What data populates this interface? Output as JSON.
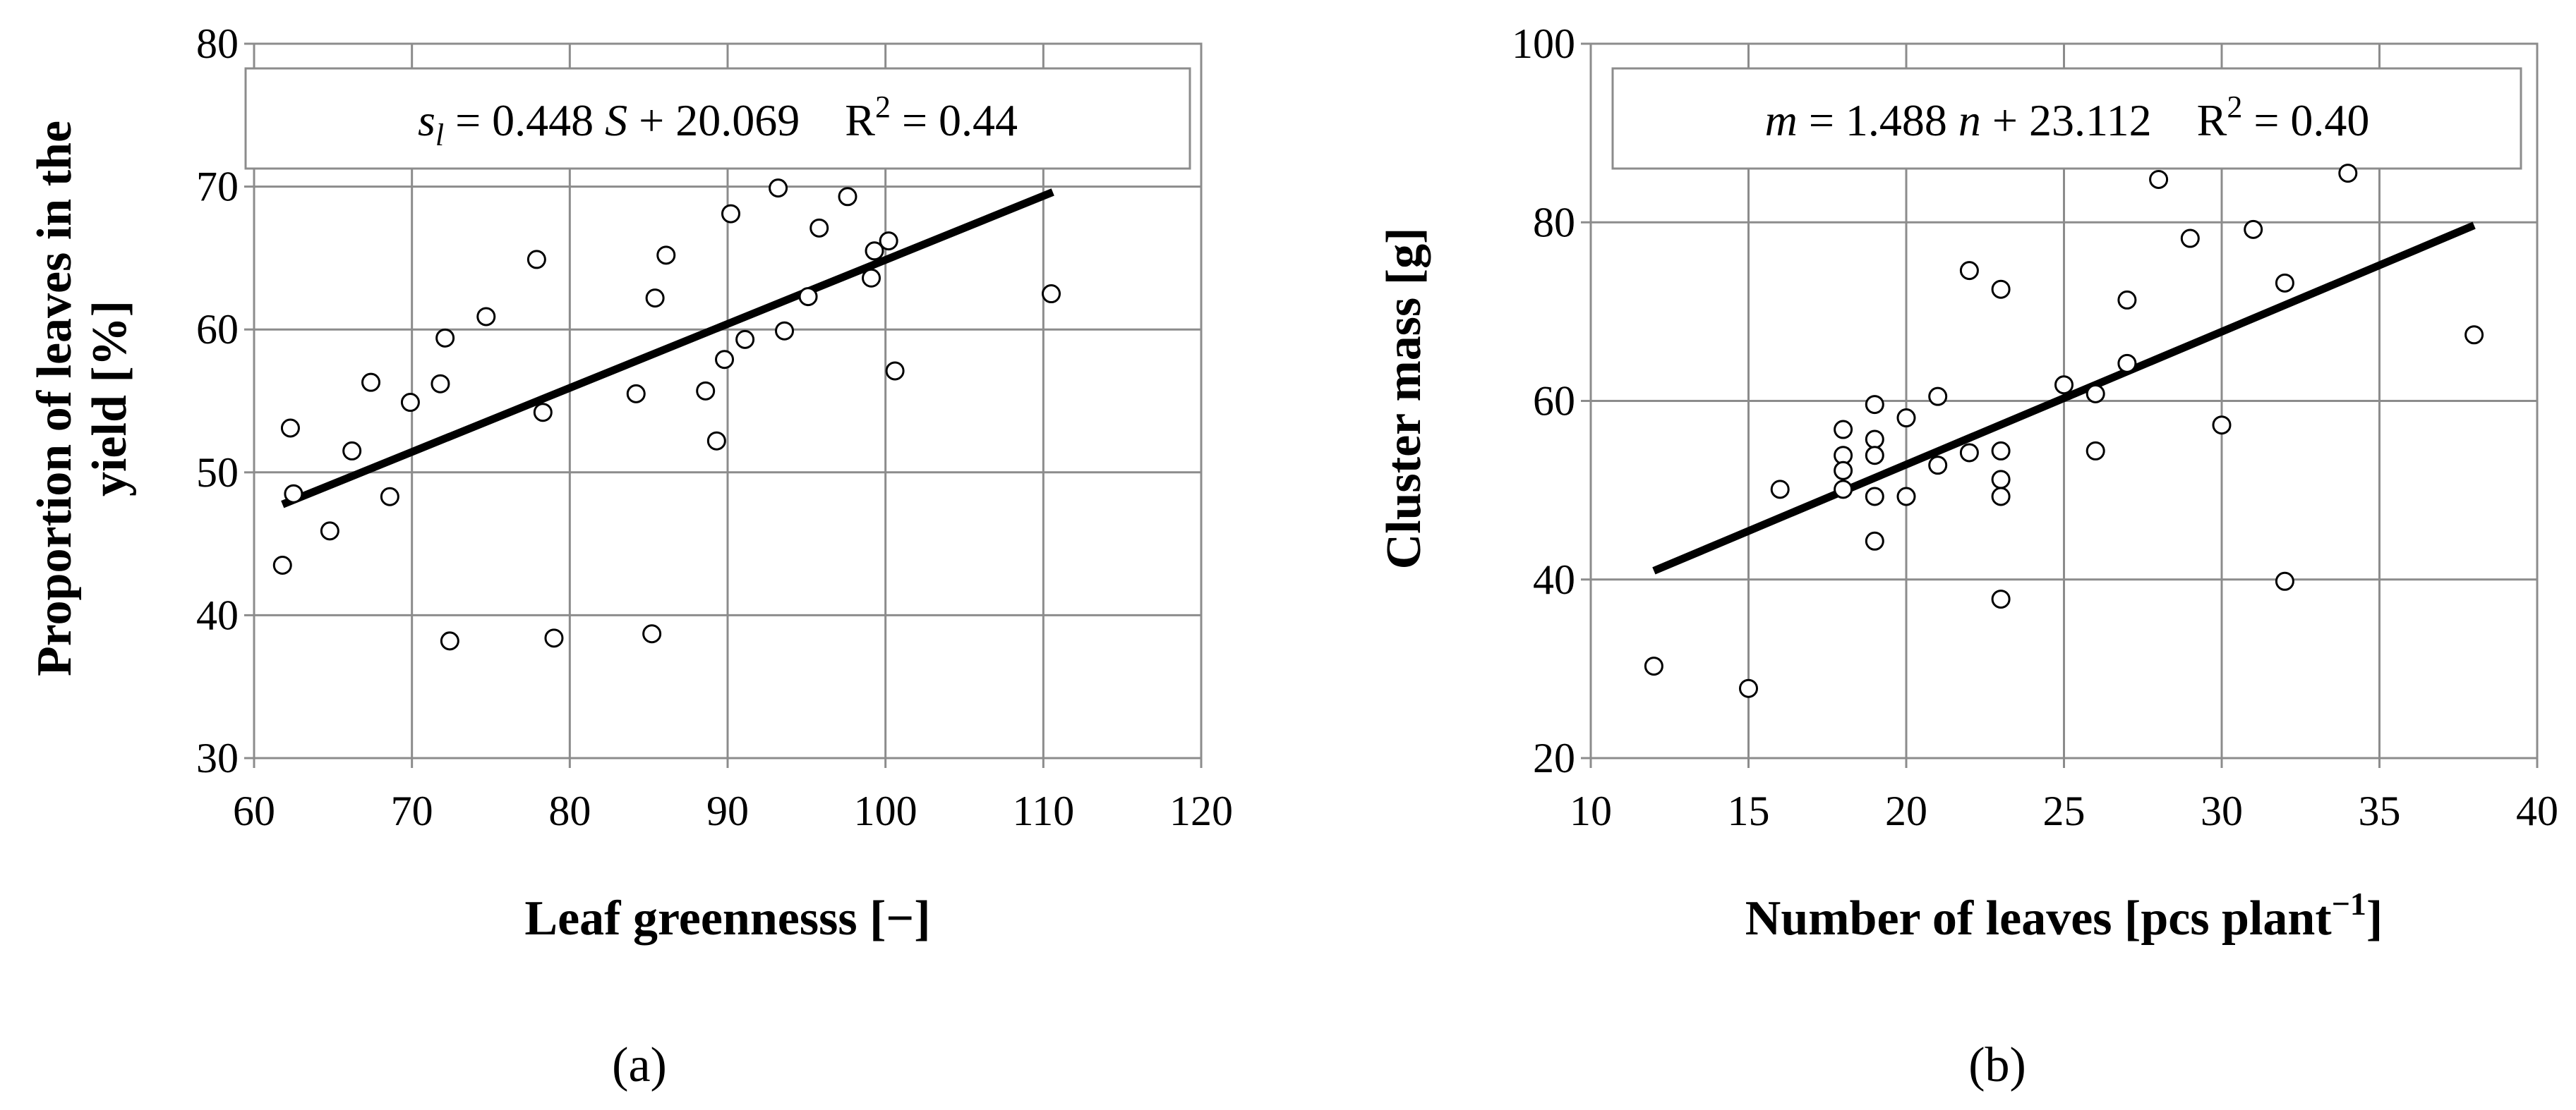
{
  "chart_data": [
    {
      "type": "scatter",
      "panel_label": "(a)",
      "xlabel": "Leaf greennesss [−]",
      "ylabel_lines": [
        "Proportion of leaves in the",
        "yield [%]"
      ],
      "xlim": [
        60,
        120
      ],
      "ylim": [
        30,
        80
      ],
      "xticks": [
        60,
        70,
        80,
        90,
        100,
        110,
        120
      ],
      "yticks": [
        30,
        40,
        50,
        60,
        70,
        80
      ],
      "grid": true,
      "equation": {
        "lhs_var": "s",
        "lhs_sub": "l",
        "mid1": " = 0.448 ",
        "var": "S",
        "mid2": " + 20.069",
        "r2_prefix": "R",
        "r2_sup": "2",
        "r2_value": " = 0.44"
      },
      "fit": {
        "slope": 0.448,
        "intercept": 20.069,
        "x_range": [
          61.8,
          110.6
        ]
      },
      "points": [
        [
          61.8,
          43.5
        ],
        [
          62.3,
          53.1
        ],
        [
          62.5,
          48.5
        ],
        [
          64.8,
          45.9
        ],
        [
          66.2,
          51.5
        ],
        [
          67.4,
          56.3
        ],
        [
          68.6,
          48.3
        ],
        [
          69.9,
          54.9
        ],
        [
          71.8,
          56.2
        ],
        [
          72.1,
          59.4
        ],
        [
          72.4,
          38.2
        ],
        [
          74.7,
          60.9
        ],
        [
          77.9,
          64.9
        ],
        [
          78.3,
          54.2
        ],
        [
          79.0,
          38.4
        ],
        [
          84.2,
          55.5
        ],
        [
          85.2,
          38.7
        ],
        [
          85.4,
          62.2
        ],
        [
          86.1,
          65.2
        ],
        [
          88.6,
          55.7
        ],
        [
          89.3,
          52.2
        ],
        [
          89.8,
          57.9
        ],
        [
          90.2,
          68.1
        ],
        [
          91.1,
          59.3
        ],
        [
          93.2,
          69.9
        ],
        [
          93.6,
          59.9
        ],
        [
          95.1,
          62.3
        ],
        [
          95.8,
          67.1
        ],
        [
          97.6,
          69.3
        ],
        [
          99.1,
          63.6
        ],
        [
          99.3,
          65.5
        ],
        [
          100.2,
          66.2
        ],
        [
          100.6,
          57.1
        ],
        [
          110.5,
          62.5
        ]
      ]
    },
    {
      "type": "scatter",
      "panel_label": "(b)",
      "xlabel": "Number of leaves [pcs plant",
      "xlabel_sup": "−1",
      "xlabel_end": "]",
      "ylabel_lines": [
        "Cluster mass [g]"
      ],
      "xlim": [
        10,
        40
      ],
      "ylim": [
        20,
        100
      ],
      "xticks": [
        10,
        15,
        20,
        25,
        30,
        35,
        40
      ],
      "yticks": [
        20,
        40,
        60,
        80,
        100
      ],
      "grid": true,
      "equation": {
        "lhs_var": "m",
        "lhs_sub": "",
        "mid1": " = 1.488 ",
        "var": "n",
        "mid2": " + 23.112",
        "r2_prefix": "R",
        "r2_sup": "2",
        "r2_value": " = 0.40"
      },
      "fit": {
        "slope": 1.488,
        "intercept": 23.112,
        "x_range": [
          12,
          38
        ]
      },
      "points": [
        [
          12,
          30.3
        ],
        [
          15,
          27.8
        ],
        [
          16,
          50.1
        ],
        [
          18,
          56.8
        ],
        [
          18,
          53.9
        ],
        [
          18,
          52.2
        ],
        [
          18,
          50.1
        ],
        [
          19,
          59.6
        ],
        [
          19,
          55.7
        ],
        [
          19,
          53.9
        ],
        [
          19,
          49.3
        ],
        [
          19,
          44.3
        ],
        [
          20,
          58.1
        ],
        [
          20,
          49.3
        ],
        [
          21,
          60.5
        ],
        [
          21,
          52.8
        ],
        [
          22,
          74.6
        ],
        [
          22,
          54.2
        ],
        [
          23,
          72.5
        ],
        [
          23,
          54.4
        ],
        [
          23,
          51.2
        ],
        [
          23,
          49.3
        ],
        [
          23,
          37.8
        ],
        [
          25,
          61.8
        ],
        [
          26,
          60.8
        ],
        [
          26,
          54.4
        ],
        [
          27,
          71.3
        ],
        [
          27,
          64.2
        ],
        [
          28,
          84.8
        ],
        [
          29,
          78.2
        ],
        [
          30,
          57.3
        ],
        [
          31,
          79.2
        ],
        [
          32,
          73.2
        ],
        [
          32,
          39.8
        ],
        [
          34,
          85.5
        ],
        [
          38,
          67.4
        ]
      ]
    }
  ]
}
